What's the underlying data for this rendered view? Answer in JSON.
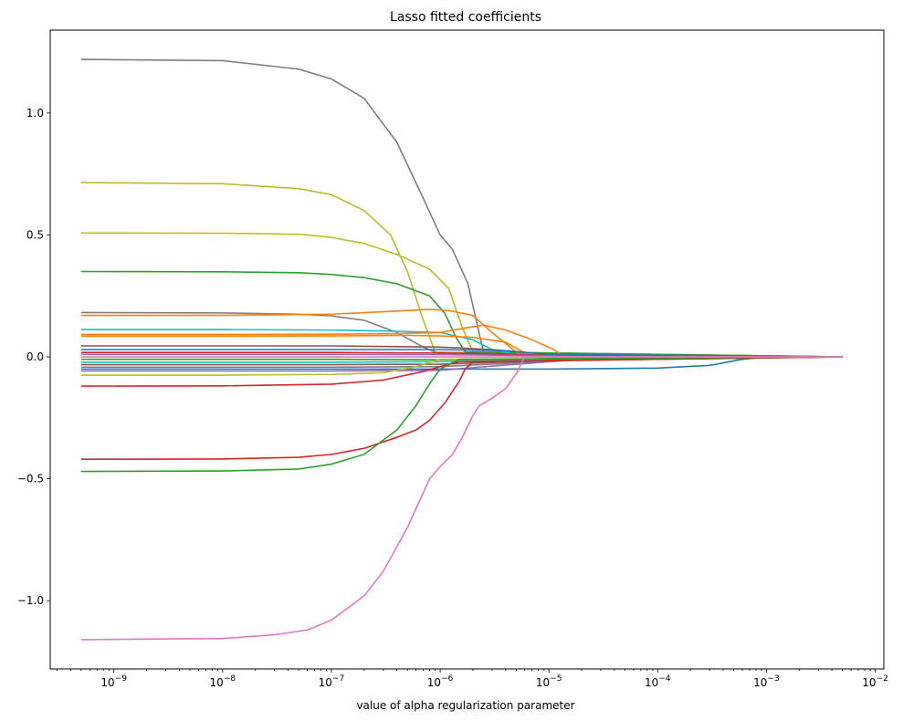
{
  "chart_data": {
    "type": "line",
    "title": "Lasso fitted coefficients",
    "xlabel": "value of alpha regularization parameter",
    "ylabel": "",
    "xscale": "log",
    "xlim": [
      2.6e-10,
      0.012
    ],
    "ylim": [
      -1.28,
      1.34
    ],
    "grid": false,
    "legend": "none",
    "x_ticks": [
      {
        "value": 1e-09,
        "label": "10",
        "exp": "−9"
      },
      {
        "value": 1e-08,
        "label": "10",
        "exp": "−8"
      },
      {
        "value": 1e-07,
        "label": "10",
        "exp": "−7"
      },
      {
        "value": 1e-06,
        "label": "10",
        "exp": "−6"
      },
      {
        "value": 1e-05,
        "label": "10",
        "exp": "−5"
      },
      {
        "value": 0.0001,
        "label": "10",
        "exp": "−4"
      },
      {
        "value": 0.001,
        "label": "10",
        "exp": "−3"
      },
      {
        "value": 0.01,
        "label": "10",
        "exp": "−2"
      }
    ],
    "y_ticks": [
      {
        "value": 1.0,
        "label": "1.0"
      },
      {
        "value": 0.5,
        "label": "0.5"
      },
      {
        "value": 0.0,
        "label": "0.0"
      },
      {
        "value": -0.5,
        "label": "−0.5"
      },
      {
        "value": -1.0,
        "label": "−1.0"
      }
    ],
    "series": [
      {
        "color": "#7f7f7f",
        "points": [
          [
            5e-10,
            1.22
          ],
          [
            1e-08,
            1.215
          ],
          [
            5e-08,
            1.18
          ],
          [
            1e-07,
            1.14
          ],
          [
            2e-07,
            1.06
          ],
          [
            4e-07,
            0.88
          ],
          [
            7e-07,
            0.65
          ],
          [
            1e-06,
            0.5
          ],
          [
            1.3e-06,
            0.44
          ],
          [
            1.8e-06,
            0.3
          ],
          [
            2.5e-06,
            0.02
          ],
          [
            0.005,
            0.0
          ]
        ]
      },
      {
        "color": "#bcbd22",
        "points": [
          [
            5e-10,
            0.715
          ],
          [
            1e-08,
            0.71
          ],
          [
            5e-08,
            0.69
          ],
          [
            1e-07,
            0.665
          ],
          [
            2e-07,
            0.6
          ],
          [
            3.5e-07,
            0.5
          ],
          [
            5e-07,
            0.35
          ],
          [
            7e-07,
            0.15
          ],
          [
            9e-07,
            0.02
          ],
          [
            0.005,
            0.0
          ]
        ]
      },
      {
        "color": "#bcbd22",
        "points": [
          [
            5e-10,
            0.508
          ],
          [
            1e-08,
            0.507
          ],
          [
            5e-08,
            0.503
          ],
          [
            1e-07,
            0.49
          ],
          [
            2e-07,
            0.465
          ],
          [
            4e-07,
            0.42
          ],
          [
            8e-07,
            0.36
          ],
          [
            1.2e-06,
            0.28
          ],
          [
            1.6e-06,
            0.12
          ],
          [
            2e-06,
            0.02
          ],
          [
            0.005,
            0.0
          ]
        ]
      },
      {
        "color": "#2ca02c",
        "points": [
          [
            5e-10,
            0.35
          ],
          [
            1e-08,
            0.349
          ],
          [
            5e-08,
            0.345
          ],
          [
            1e-07,
            0.338
          ],
          [
            2e-07,
            0.325
          ],
          [
            4e-07,
            0.3
          ],
          [
            8e-07,
            0.25
          ],
          [
            1.1e-06,
            0.18
          ],
          [
            1.4e-06,
            0.08
          ],
          [
            1.7e-06,
            0.02
          ],
          [
            0.005,
            0.0
          ]
        ]
      },
      {
        "color": "#7f7f7f",
        "points": [
          [
            5e-10,
            0.182
          ],
          [
            1e-08,
            0.18
          ],
          [
            5e-08,
            0.175
          ],
          [
            1e-07,
            0.168
          ],
          [
            2e-07,
            0.15
          ],
          [
            4e-07,
            0.1
          ],
          [
            7e-07,
            0.04
          ],
          [
            1e-06,
            0.01
          ],
          [
            0.005,
            0.0
          ]
        ]
      },
      {
        "color": "#ff7f0e",
        "points": [
          [
            5e-10,
            0.17
          ],
          [
            1e-08,
            0.17
          ],
          [
            1e-07,
            0.175
          ],
          [
            3e-07,
            0.185
          ],
          [
            8e-07,
            0.195
          ],
          [
            1.2e-06,
            0.19
          ],
          [
            2e-06,
            0.17
          ],
          [
            3e-06,
            0.1
          ],
          [
            5e-06,
            0.02
          ],
          [
            7e-06,
            0.0
          ],
          [
            0.005,
            0.0
          ]
        ]
      },
      {
        "color": "#17becf",
        "points": [
          [
            5e-10,
            0.112
          ],
          [
            1e-08,
            0.112
          ],
          [
            1e-07,
            0.11
          ],
          [
            3e-07,
            0.106
          ],
          [
            1e-06,
            0.1
          ],
          [
            2e-06,
            0.07
          ],
          [
            3e-06,
            0.03
          ],
          [
            5e-06,
            0.01
          ],
          [
            0.005,
            0.0
          ]
        ]
      },
      {
        "color": "#ff7f0e",
        "points": [
          [
            5e-10,
            0.092
          ],
          [
            1e-08,
            0.092
          ],
          [
            1e-07,
            0.093
          ],
          [
            4e-07,
            0.095
          ],
          [
            1e-06,
            0.1
          ],
          [
            1.8e-06,
            0.12
          ],
          [
            2.5e-06,
            0.13
          ],
          [
            4e-06,
            0.11
          ],
          [
            7e-06,
            0.07
          ],
          [
            1.1e-05,
            0.03
          ],
          [
            1.4e-05,
            0.0
          ],
          [
            0.005,
            0.0
          ]
        ]
      },
      {
        "color": "#ff7f0e",
        "points": [
          [
            5e-10,
            0.085
          ],
          [
            1e-08,
            0.085
          ],
          [
            1e-07,
            0.086
          ],
          [
            5e-07,
            0.088
          ],
          [
            1e-06,
            0.086
          ],
          [
            2e-06,
            0.08
          ],
          [
            4e-06,
            0.06
          ],
          [
            7e-06,
            0.0
          ],
          [
            0.005,
            0.0
          ]
        ]
      },
      {
        "color": "#8c564b",
        "points": [
          [
            5e-10,
            0.045
          ],
          [
            1e-07,
            0.045
          ],
          [
            1e-06,
            0.04
          ],
          [
            3e-06,
            0.03
          ],
          [
            1e-05,
            0.01
          ],
          [
            0.005,
            0.0
          ]
        ]
      },
      {
        "color": "#1f77b4",
        "points": [
          [
            5e-10,
            0.03
          ],
          [
            1e-07,
            0.03
          ],
          [
            1e-06,
            0.03
          ],
          [
            4e-06,
            0.025
          ],
          [
            1e-05,
            0.01
          ],
          [
            0.005,
            0.0
          ]
        ]
      },
      {
        "color": "#d62728",
        "points": [
          [
            5e-10,
            0.018
          ],
          [
            1e-07,
            0.018
          ],
          [
            1e-06,
            0.016
          ],
          [
            4e-06,
            0.012
          ],
          [
            1e-05,
            0.005
          ],
          [
            0.005,
            0.0
          ]
        ]
      },
      {
        "color": "#9467bd",
        "points": [
          [
            5e-10,
            0.01
          ],
          [
            1e-07,
            0.01
          ],
          [
            1e-06,
            0.009
          ],
          [
            5e-06,
            0.006
          ],
          [
            2e-05,
            0.002
          ],
          [
            0.005,
            0.0
          ]
        ]
      },
      {
        "color": "#e377c2",
        "points": [
          [
            5e-10,
            0.0
          ],
          [
            1e-06,
            0.0
          ],
          [
            0.005,
            0.0
          ]
        ]
      },
      {
        "color": "#2ca02c",
        "points": [
          [
            5e-10,
            -0.01
          ],
          [
            1e-07,
            -0.01
          ],
          [
            1e-06,
            -0.012
          ],
          [
            5e-06,
            -0.01
          ],
          [
            2e-05,
            -0.004
          ],
          [
            0.005,
            0.0
          ]
        ]
      },
      {
        "color": "#17becf",
        "points": [
          [
            5e-10,
            -0.022
          ],
          [
            1e-07,
            -0.022
          ],
          [
            1e-06,
            -0.02
          ],
          [
            5e-06,
            -0.015
          ],
          [
            2e-05,
            -0.005
          ],
          [
            0.005,
            0.0
          ]
        ]
      },
      {
        "color": "#8c564b",
        "points": [
          [
            5e-10,
            -0.032
          ],
          [
            1e-07,
            -0.032
          ],
          [
            1e-06,
            -0.03
          ],
          [
            5e-06,
            -0.02
          ],
          [
            2e-05,
            -0.008
          ],
          [
            0.005,
            0.0
          ]
        ]
      },
      {
        "color": "#7f7f7f",
        "points": [
          [
            5e-10,
            -0.042
          ],
          [
            1e-07,
            -0.042
          ],
          [
            1e-06,
            -0.04
          ],
          [
            5e-06,
            -0.025
          ],
          [
            2e-05,
            -0.01
          ],
          [
            0.005,
            0.0
          ]
        ]
      },
      {
        "color": "#1f77b4",
        "points": [
          [
            5e-10,
            -0.05
          ],
          [
            1e-07,
            -0.05
          ],
          [
            1e-06,
            -0.05
          ],
          [
            1e-05,
            -0.05
          ],
          [
            0.0001,
            -0.046
          ],
          [
            0.0003,
            -0.035
          ],
          [
            0.0006,
            -0.01
          ],
          [
            0.001,
            0.0
          ],
          [
            0.005,
            0.0
          ]
        ]
      },
      {
        "color": "#9467bd",
        "points": [
          [
            5e-10,
            -0.058
          ],
          [
            1e-07,
            -0.058
          ],
          [
            1e-06,
            -0.055
          ],
          [
            5e-06,
            -0.03
          ],
          [
            2e-05,
            -0.01
          ],
          [
            0.005,
            0.0
          ]
        ]
      },
      {
        "color": "#bcbd22",
        "points": [
          [
            5e-10,
            -0.075
          ],
          [
            1e-08,
            -0.075
          ],
          [
            1e-07,
            -0.072
          ],
          [
            3e-07,
            -0.065
          ],
          [
            6e-07,
            -0.04
          ],
          [
            1e-06,
            -0.01
          ],
          [
            0.005,
            0.0
          ]
        ]
      },
      {
        "color": "#d62728",
        "points": [
          [
            5e-10,
            -0.12
          ],
          [
            1e-08,
            -0.119
          ],
          [
            1e-07,
            -0.112
          ],
          [
            3e-07,
            -0.095
          ],
          [
            7e-07,
            -0.06
          ],
          [
            1e-06,
            -0.04
          ],
          [
            1.5e-06,
            -0.02
          ],
          [
            0.005,
            0.0
          ]
        ]
      },
      {
        "color": "#d62728",
        "points": [
          [
            5e-10,
            -0.42
          ],
          [
            1e-08,
            -0.419
          ],
          [
            5e-08,
            -0.412
          ],
          [
            1e-07,
            -0.4
          ],
          [
            2e-07,
            -0.375
          ],
          [
            4e-07,
            -0.33
          ],
          [
            6e-07,
            -0.3
          ],
          [
            8e-07,
            -0.26
          ],
          [
            1.1e-06,
            -0.19
          ],
          [
            1.5e-06,
            -0.1
          ],
          [
            1.7e-06,
            -0.05
          ],
          [
            2e-06,
            -0.02
          ],
          [
            0.005,
            0.0
          ]
        ]
      },
      {
        "color": "#2ca02c",
        "points": [
          [
            5e-10,
            -0.47
          ],
          [
            1e-08,
            -0.468
          ],
          [
            5e-08,
            -0.46
          ],
          [
            1e-07,
            -0.44
          ],
          [
            2e-07,
            -0.4
          ],
          [
            4e-07,
            -0.3
          ],
          [
            6e-07,
            -0.2
          ],
          [
            8e-07,
            -0.11
          ],
          [
            1e-06,
            -0.05
          ],
          [
            1.5e-06,
            -0.01
          ],
          [
            0.005,
            0.0
          ]
        ]
      },
      {
        "color": "#e377c2",
        "points": [
          [
            5e-10,
            -1.16
          ],
          [
            1e-08,
            -1.155
          ],
          [
            3e-08,
            -1.14
          ],
          [
            6e-08,
            -1.12
          ],
          [
            1e-07,
            -1.08
          ],
          [
            2e-07,
            -0.98
          ],
          [
            3e-07,
            -0.88
          ],
          [
            5e-07,
            -0.7
          ],
          [
            8e-07,
            -0.5
          ],
          [
            1e-06,
            -0.45
          ],
          [
            1.3e-06,
            -0.4
          ],
          [
            1.6e-06,
            -0.33
          ],
          [
            2e-06,
            -0.24
          ],
          [
            2.3e-06,
            -0.2
          ],
          [
            3e-06,
            -0.17
          ],
          [
            4e-06,
            -0.13
          ],
          [
            5e-06,
            -0.07
          ],
          [
            6e-06,
            0.0
          ],
          [
            0.005,
            0.0
          ]
        ]
      }
    ]
  }
}
